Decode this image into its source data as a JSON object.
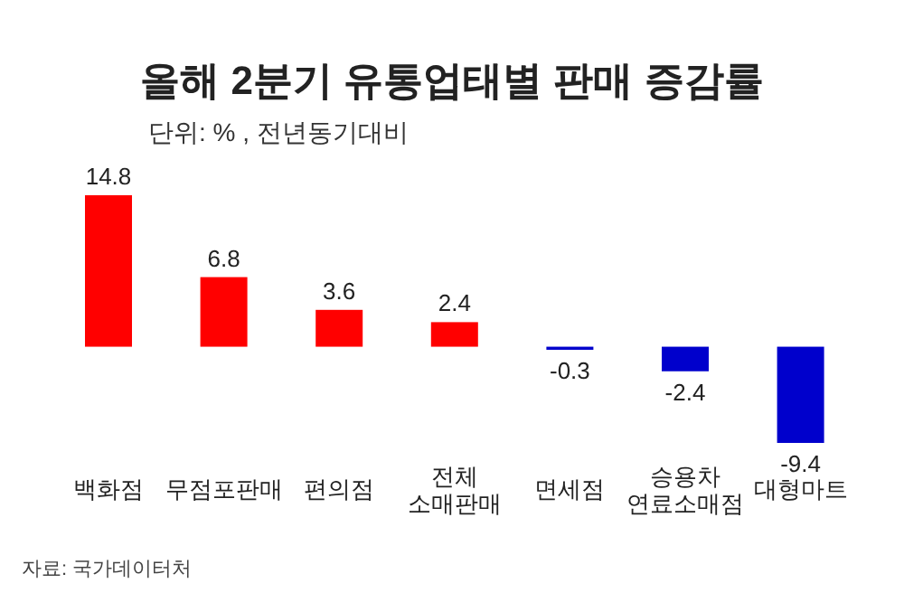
{
  "chart_data": {
    "type": "bar",
    "title": "올해 2분기 유통업태별 판매 증감률",
    "subtitle": "단위: % , 전년동기대비",
    "categories": [
      "백화점",
      "무점포판매",
      "편의점",
      "전체\n소매판매",
      "면세점",
      "승용차\n연료소매점",
      "대형마트"
    ],
    "values": [
      14.8,
      6.8,
      3.6,
      2.4,
      -0.3,
      -2.4,
      -9.4
    ],
    "colors": [
      "#ff0000",
      "#ff0000",
      "#ff0000",
      "#ff0000",
      "#0000cc",
      "#0000cc",
      "#0000cc"
    ],
    "data_labels": true,
    "annotations": [
      "자료: 국가데이터처"
    ]
  }
}
